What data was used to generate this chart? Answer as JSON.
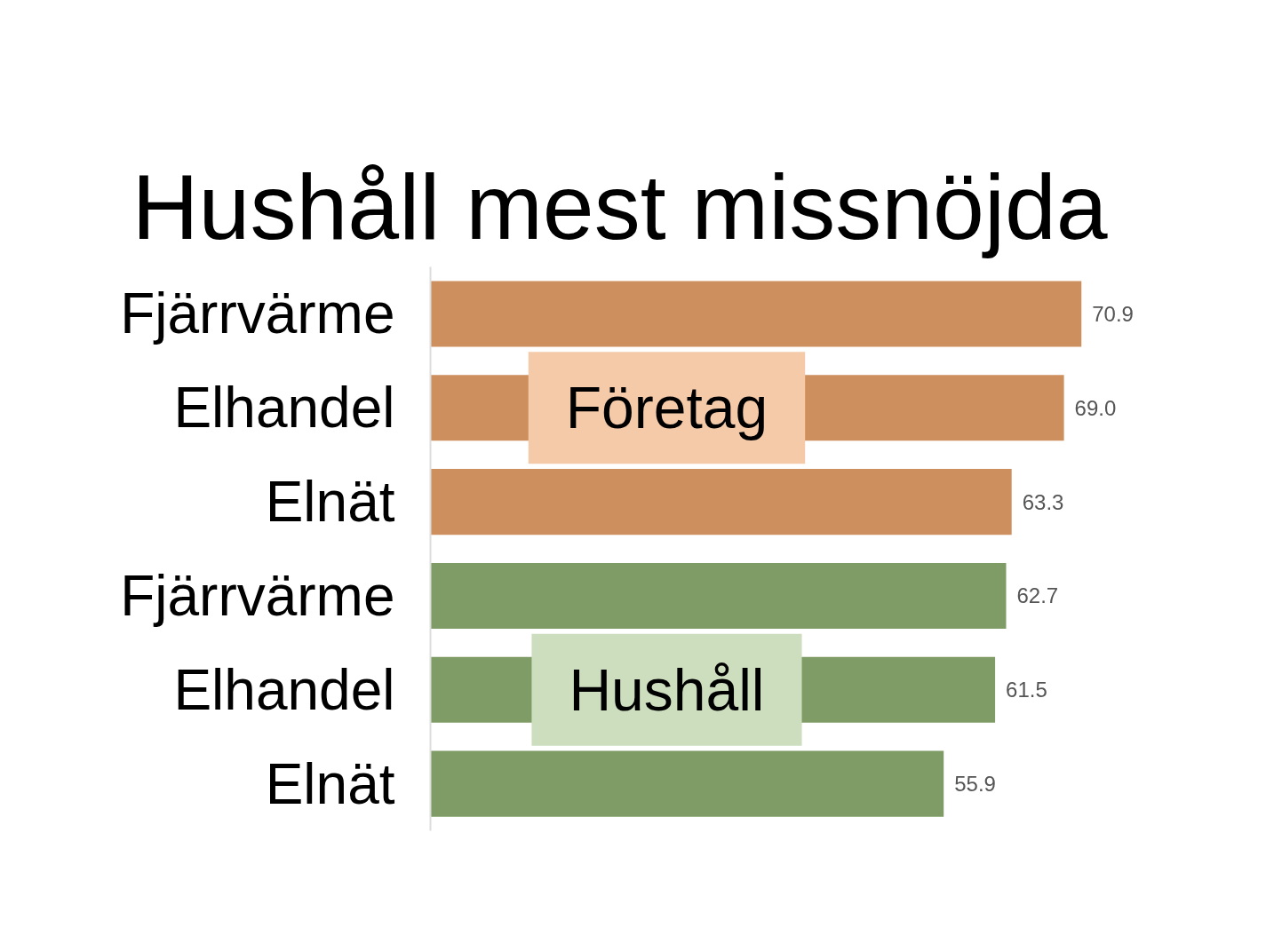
{
  "chart_data": {
    "type": "bar",
    "orientation": "horizontal",
    "title": "Hushåll mest missnöjda",
    "categories": [
      "Fjärrvärme",
      "Elhandel",
      "Elnät",
      "Fjärrvärme",
      "Elhandel",
      "Elnät"
    ],
    "series": [
      {
        "name": "Företag",
        "color": "#cd8f5e",
        "values": [
          70.9,
          69.0,
          63.3,
          null,
          null,
          null
        ],
        "value_labels": [
          "70.9",
          "69.0",
          "63.3",
          null,
          null,
          null
        ]
      },
      {
        "name": "Hushåll",
        "color": "#7f9c66",
        "values": [
          null,
          null,
          null,
          62.7,
          61.5,
          55.9
        ],
        "value_labels": [
          null,
          null,
          null,
          "62.7",
          "61.5",
          "55.9"
        ]
      }
    ],
    "tick_labels": "y"
  }
}
